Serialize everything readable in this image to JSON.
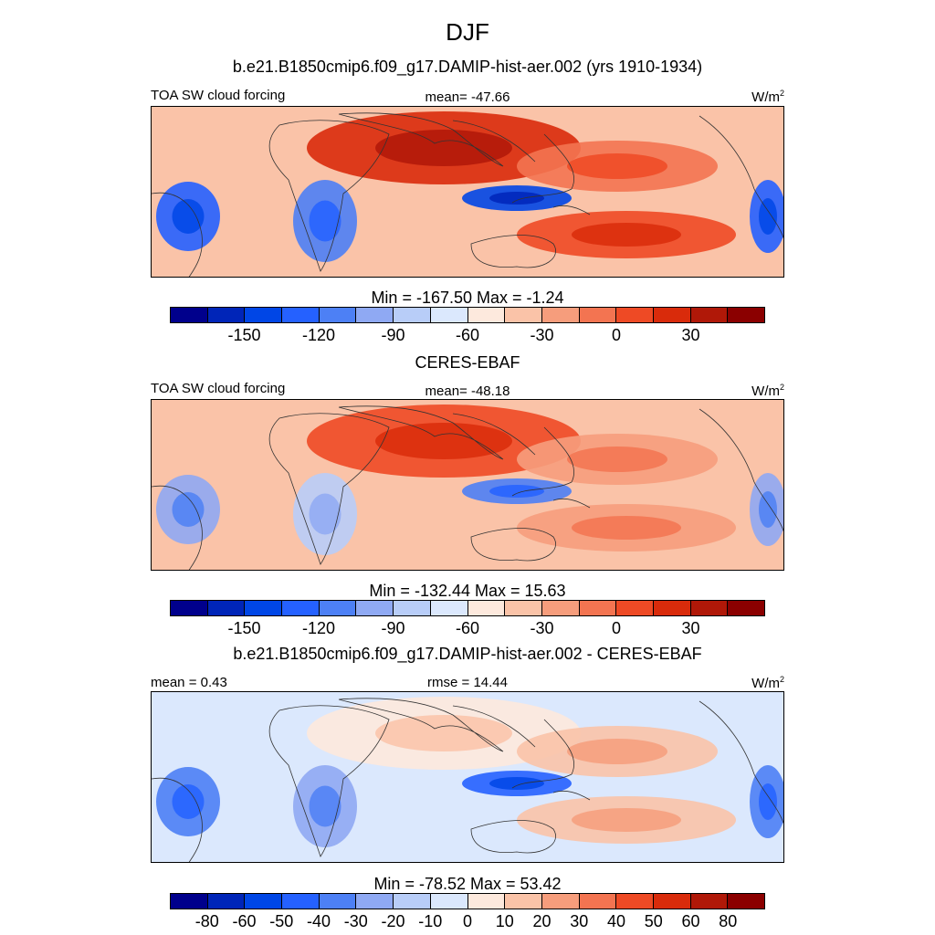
{
  "title": "DJF",
  "panels": [
    {
      "title": "b.e21.B1850cmip6.f09_g17.DAMIP-hist-aer.002 (yrs 1910-1934)",
      "left_label": "TOA SW cloud forcing",
      "center_label": "mean= -47.66",
      "units": "W/m",
      "units_sup": "2",
      "minmax": "Min = -167.50 Max =  -1.24",
      "cbar_ticks": [
        "-150",
        "-120",
        "-90",
        "-60",
        "-30",
        "0",
        "30"
      ],
      "fields": [
        {
          "name": "africa-sahara",
          "level": 13
        },
        {
          "name": "southern-africa",
          "level": 4
        },
        {
          "name": "maritime-continent",
          "level": 2
        },
        {
          "name": "north-pacific",
          "level": 11
        },
        {
          "name": "south-pacific",
          "level": 12
        },
        {
          "name": "south-america",
          "level": 3
        }
      ]
    },
    {
      "title": "CERES-EBAF",
      "left_label": "TOA SW cloud forcing",
      "center_label": "mean= -48.18",
      "units": "W/m",
      "units_sup": "2",
      "minmax": "Min = -132.44 Max =  15.63",
      "cbar_ticks": [
        "-150",
        "-120",
        "-90",
        "-60",
        "-30",
        "0",
        "30"
      ],
      "fields": [
        {
          "name": "africa-sahara",
          "level": 12
        },
        {
          "name": "southern-africa",
          "level": 6
        },
        {
          "name": "maritime-continent",
          "level": 4
        },
        {
          "name": "north-pacific",
          "level": 10
        },
        {
          "name": "south-pacific",
          "level": 10
        },
        {
          "name": "south-america",
          "level": 5
        }
      ]
    },
    {
      "title": "b.e21.B1850cmip6.f09_g17.DAMIP-hist-aer.002 - CERES-EBAF",
      "left_label": "mean =   0.43",
      "center_label": "rmse =  14.44",
      "units": "W/m",
      "units_sup": "2",
      "minmax": "Min = -78.52 Max =  53.42",
      "cbar_ticks": [
        "-80",
        "-60",
        "-50",
        "-40",
        "-30",
        "-20",
        "-10",
        "0",
        "10",
        "20",
        "30",
        "40",
        "50",
        "60",
        "80"
      ],
      "fields": [
        {
          "name": "africa-sahara",
          "level": 8
        },
        {
          "name": "southern-africa",
          "level": 5
        },
        {
          "name": "maritime-continent",
          "level": 3
        },
        {
          "name": "north-pacific",
          "level": 9
        },
        {
          "name": "south-pacific",
          "level": 9
        },
        {
          "name": "south-america",
          "level": 4
        }
      ]
    }
  ],
  "colors": [
    "#00008c",
    "#0025b8",
    "#0046e6",
    "#2561ff",
    "#4d80f5",
    "#8fa9f3",
    "#b8cdf8",
    "#dbe8fd",
    "#fde9dd",
    "#fac3a8",
    "#f69d7c",
    "#f37451",
    "#ee4a25",
    "#d92b0b",
    "#b01808",
    "#8b0000"
  ],
  "chart_data": [
    {
      "type": "heatmap",
      "title": "b.e21.B1850cmip6.f09_g17.DAMIP-hist-aer.002 (yrs 1910-1934)",
      "levels": [
        -165,
        -150,
        -135,
        -120,
        -105,
        -90,
        -75,
        -60,
        -45,
        -30,
        -15,
        0,
        15,
        30,
        45
      ],
      "min": -167.5,
      "max": -1.24,
      "mean": -47.66
    },
    {
      "type": "heatmap",
      "title": "CERES-EBAF",
      "levels": [
        -165,
        -150,
        -135,
        -120,
        -105,
        -90,
        -75,
        -60,
        -45,
        -30,
        -15,
        0,
        15,
        30,
        45
      ],
      "min": -132.44,
      "max": 15.63,
      "mean": -48.18
    },
    {
      "type": "heatmap",
      "title": "b.e21.B1850cmip6.f09_g17.DAMIP-hist-aer.002 - CERES-EBAF",
      "levels": [
        -80,
        -60,
        -50,
        -40,
        -30,
        -20,
        -10,
        0,
        10,
        20,
        30,
        40,
        50,
        60,
        80
      ],
      "min": -78.52,
      "max": 53.42,
      "mean": 0.43,
      "rmse": 14.44
    }
  ]
}
